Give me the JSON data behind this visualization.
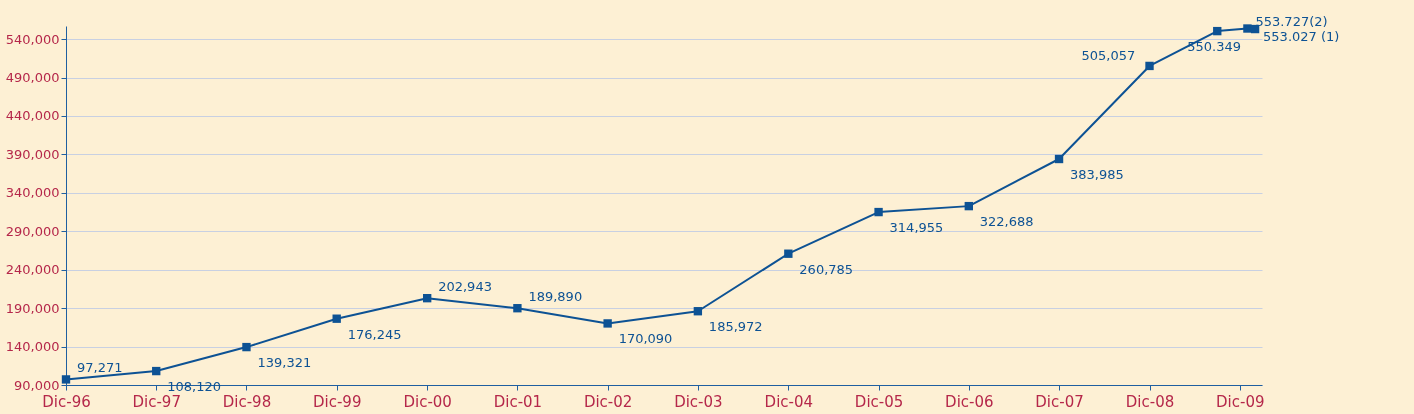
{
  "chart_data": {
    "type": "line",
    "x": [
      "1996-12",
      "1997-12",
      "1998-12",
      "1999-12",
      "2000-12",
      "2001-12",
      "2002-12",
      "2003-12",
      "2004-12",
      "2005-12",
      "2006-12",
      "2007-12",
      "2008-12",
      "2009-09",
      "2010-01",
      "2010-02"
    ],
    "series": [
      {
        "color": "#0d5294",
        "values": [
          97271,
          108120,
          139321,
          176245,
          202943,
          189890,
          170090,
          185972,
          260785,
          314955,
          322688,
          383985,
          505057,
          550349,
          553727,
          553027
        ],
        "value_labels": [
          "97,271",
          "108,120",
          "139,321",
          "176,245",
          "202,943",
          "189,890",
          "170,090",
          "185,972",
          "260,785",
          "314,955",
          "322,688",
          "383,985",
          "505,057",
          null,
          null,
          null
        ]
      }
    ],
    "annotations": [
      {
        "text": "550.349",
        "x": "2009-09",
        "y": 550349
      },
      {
        "text": "553.727(2)",
        "x": "2010-01",
        "y": 553727
      },
      {
        "text": "553.027 (1)",
        "x": "2010-02",
        "y": 553027
      }
    ],
    "xlim": [
      "1996-12",
      "2010-03"
    ],
    "xticks": [
      {
        "value": "1996-12",
        "label": "Dic-96"
      },
      {
        "value": "1997-12",
        "label": "Dic-97"
      },
      {
        "value": "1998-12",
        "label": "Dic-98"
      },
      {
        "value": "1999-12",
        "label": "Dic-99"
      },
      {
        "value": "2000-12",
        "label": "Dic-00"
      },
      {
        "value": "2001-12",
        "label": "Dic-01"
      },
      {
        "value": "2002-12",
        "label": "Dic-02"
      },
      {
        "value": "2003-12",
        "label": "Dic-03"
      },
      {
        "value": "2004-12",
        "label": "Dic-04"
      },
      {
        "value": "2005-12",
        "label": "Dic-05"
      },
      {
        "value": "2006-12",
        "label": "Dic-06"
      },
      {
        "value": "2007-12",
        "label": "Dic-07"
      },
      {
        "value": "2008-12",
        "label": "Dic-08"
      },
      {
        "value": "2009-12",
        "label": "Dic-09"
      }
    ],
    "ylim": [
      90000,
      557000
    ],
    "yticks": [
      {
        "value": 90000,
        "label": "90,000"
      },
      {
        "value": 140000,
        "label": "140,000"
      },
      {
        "value": 190000,
        "label": "190,000"
      },
      {
        "value": 240000,
        "label": "240,000"
      },
      {
        "value": 290000,
        "label": "290,000"
      },
      {
        "value": 340000,
        "label": "340,000"
      },
      {
        "value": 390000,
        "label": "390,000"
      },
      {
        "value": 440000,
        "label": "440,000"
      },
      {
        "value": 490000,
        "label": "490,000"
      },
      {
        "value": 540000,
        "label": "540,000"
      }
    ],
    "grid": "y",
    "marker": "square",
    "line_style": "solid"
  }
}
